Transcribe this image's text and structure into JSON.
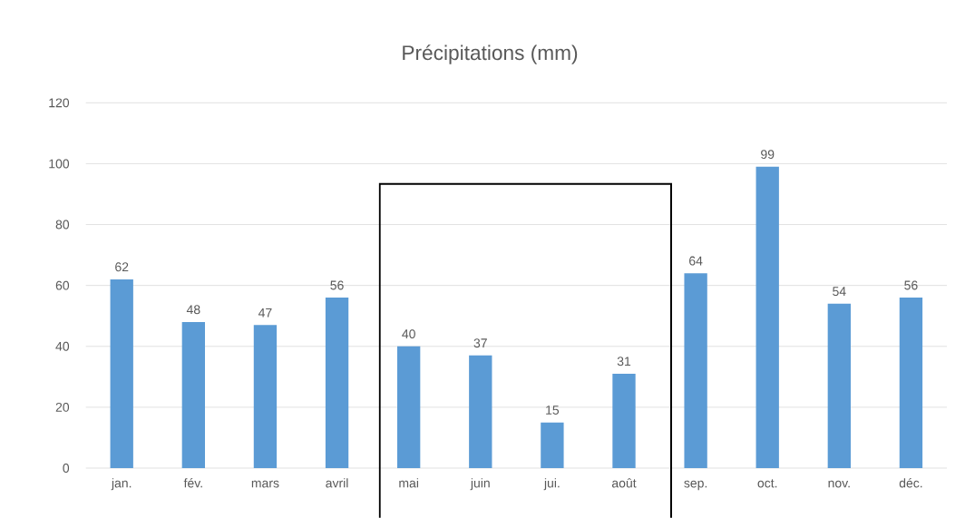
{
  "chart_data": {
    "type": "bar",
    "title": "Précipitations (mm)",
    "categories": [
      "jan.",
      "fév.",
      "mars",
      "avril",
      "mai",
      "juin",
      "jui.",
      "août",
      "sep.",
      "oct.",
      "nov.",
      "déc."
    ],
    "values": [
      62,
      48,
      47,
      56,
      40,
      37,
      15,
      31,
      64,
      99,
      54,
      56
    ],
    "color": "#5b9bd5",
    "ylim": [
      0,
      120
    ],
    "yticks": [
      0,
      20,
      40,
      60,
      80,
      100,
      120
    ],
    "grid": "y",
    "data_labels": true
  }
}
